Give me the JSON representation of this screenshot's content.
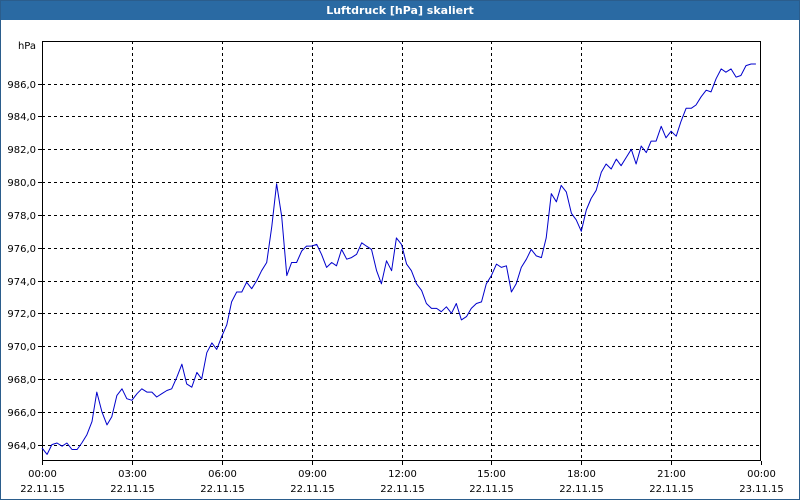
{
  "window": {
    "title": "Luftdruck [hPa] skaliert"
  },
  "chart_data": {
    "type": "line",
    "title": "Luftdruck [hPa] skaliert",
    "ylabel": "hPa",
    "xlabel": "",
    "ylim": [
      963.0,
      988.6
    ],
    "xlim": [
      0,
      24
    ],
    "grid": true,
    "series_color": "#0000cc",
    "y_ticks": [
      {
        "value": 964,
        "label": "964,0"
      },
      {
        "value": 966,
        "label": "966,0"
      },
      {
        "value": 968,
        "label": "968,0"
      },
      {
        "value": 970,
        "label": "970,0"
      },
      {
        "value": 972,
        "label": "972,0"
      },
      {
        "value": 974,
        "label": "974,0"
      },
      {
        "value": 976,
        "label": "976,0"
      },
      {
        "value": 978,
        "label": "978,0"
      },
      {
        "value": 980,
        "label": "980,0"
      },
      {
        "value": 982,
        "label": "982,0"
      },
      {
        "value": 984,
        "label": "984,0"
      },
      {
        "value": 986,
        "label": "986,0"
      }
    ],
    "x_ticks": [
      {
        "value": 0,
        "time": "00:00",
        "date": "22.11.15"
      },
      {
        "value": 3,
        "time": "03:00",
        "date": "22.11.15"
      },
      {
        "value": 6,
        "time": "06:00",
        "date": "22.11.15"
      },
      {
        "value": 9,
        "time": "09:00",
        "date": "22.11.15"
      },
      {
        "value": 12,
        "time": "12:00",
        "date": "22.11.15"
      },
      {
        "value": 15,
        "time": "15:00",
        "date": "22.11.15"
      },
      {
        "value": 18,
        "time": "18:00",
        "date": "22.11.15"
      },
      {
        "value": 21,
        "time": "21:00",
        "date": "22.11.15"
      },
      {
        "value": 24,
        "time": "00:00",
        "date": "23.11.15"
      }
    ],
    "series": [
      {
        "x": [
          0.0,
          0.17,
          0.33,
          0.5,
          0.67,
          0.83,
          1.0,
          1.17,
          1.33,
          1.5,
          1.67,
          1.83,
          2.0,
          2.17,
          2.33,
          2.5,
          2.67,
          2.83,
          3.0,
          3.17,
          3.33,
          3.5,
          3.67,
          3.83,
          4.0,
          4.17,
          4.33,
          4.5,
          4.67,
          4.83,
          5.0,
          5.17,
          5.33,
          5.5,
          5.67,
          5.83,
          6.0,
          6.17,
          6.33,
          6.5,
          6.67,
          6.83,
          7.0,
          7.17,
          7.33,
          7.5,
          7.67,
          7.83,
          8.0,
          8.17,
          8.33,
          8.5,
          8.67,
          8.83,
          9.0,
          9.17,
          9.33,
          9.5,
          9.67,
          9.83,
          10.0,
          10.17,
          10.33,
          10.5,
          10.67,
          10.83,
          11.0,
          11.17,
          11.33,
          11.5,
          11.67,
          11.83,
          12.0,
          12.17,
          12.33,
          12.5,
          12.67,
          12.83,
          13.0,
          13.17,
          13.33,
          13.5,
          13.67,
          13.83,
          14.0,
          14.17,
          14.33,
          14.5,
          14.67,
          14.83,
          15.0,
          15.17,
          15.33,
          15.5,
          15.67,
          15.83,
          16.0,
          16.17,
          16.33,
          16.5,
          16.67,
          16.83,
          17.0,
          17.17,
          17.33,
          17.5,
          17.67,
          17.83,
          18.0,
          18.17,
          18.33,
          18.5,
          18.67,
          18.83,
          19.0,
          19.17,
          19.33,
          19.5,
          19.67,
          19.83,
          20.0,
          20.17,
          20.33,
          20.5,
          20.67,
          20.83,
          21.0,
          21.17,
          21.33,
          21.5,
          21.67,
          21.83,
          22.0,
          22.17,
          22.33,
          22.5,
          22.67,
          22.83,
          23.0,
          23.17,
          23.33,
          23.5,
          23.67,
          23.83
        ],
        "values": [
          963.8,
          963.4,
          964.0,
          964.1,
          963.9,
          964.1,
          963.7,
          963.7,
          964.1,
          964.6,
          965.4,
          967.2,
          966.0,
          965.2,
          965.7,
          967.0,
          967.4,
          966.8,
          966.7,
          967.1,
          967.4,
          967.2,
          967.2,
          966.9,
          967.1,
          967.3,
          967.4,
          968.1,
          968.9,
          967.7,
          967.5,
          968.4,
          968.0,
          969.6,
          970.2,
          969.8,
          970.6,
          971.3,
          972.7,
          973.3,
          973.3,
          973.9,
          973.5,
          974.0,
          974.6,
          975.1,
          977.3,
          979.9,
          977.9,
          974.3,
          975.1,
          975.1,
          975.8,
          976.1,
          976.1,
          976.2,
          975.6,
          974.8,
          975.1,
          974.9,
          975.9,
          975.3,
          975.4,
          975.6,
          976.3,
          976.1,
          975.9,
          974.6,
          973.8,
          975.2,
          974.6,
          976.6,
          976.2,
          975.0,
          974.6,
          973.8,
          973.4,
          972.6,
          972.3,
          972.3,
          972.1,
          972.4,
          972.0,
          972.6,
          971.6,
          971.8,
          972.3,
          972.6,
          972.7,
          973.8,
          974.3,
          975.0,
          974.8,
          974.9,
          973.3,
          973.8,
          974.8,
          975.3,
          975.9,
          975.5,
          975.4,
          976.6,
          979.3,
          978.8,
          979.8,
          979.4,
          978.1,
          977.7,
          977.0,
          978.3,
          979.0,
          979.5,
          980.6,
          981.1,
          980.8,
          981.4,
          981.0,
          981.5,
          982.0,
          981.1,
          982.2,
          981.8,
          982.5,
          982.5,
          983.4,
          982.7,
          983.1,
          982.8,
          983.7,
          984.5,
          984.5,
          984.7,
          985.2,
          985.6,
          985.5,
          986.3,
          986.9,
          986.7,
          986.9,
          986.4,
          986.5,
          987.1,
          987.2,
          987.2
        ]
      }
    ]
  }
}
